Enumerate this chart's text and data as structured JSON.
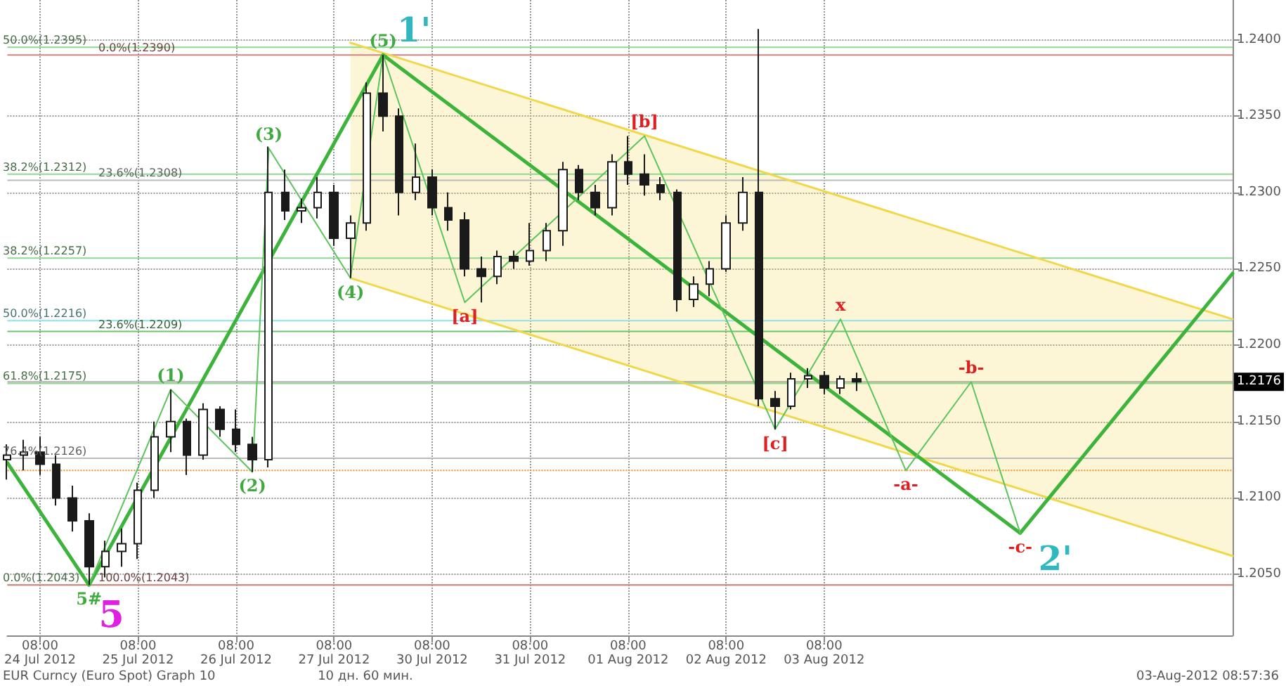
{
  "chart_data": {
    "type": "candlestick",
    "grid": true,
    "marker": "none",
    "categories": [
      null,
      null,
      "08:00\n24 Jul 2012",
      null,
      null,
      null,
      null,
      null,
      "08:00\n25 Jul 2012",
      null,
      null,
      null,
      null,
      null,
      "08:00\n26 Jul 2012",
      null,
      null,
      null,
      null,
      null,
      "08:00\n27 Jul 2012",
      null,
      null,
      null,
      null,
      null,
      "08:00\n30 Jul 2012",
      null,
      null,
      null,
      null,
      null,
      "08:00\n31 Jul 2012",
      null,
      null,
      null,
      null,
      null,
      "08:00\n01 Aug 2012",
      null,
      null,
      null,
      null,
      null,
      "08:00\n02 Aug 2012",
      null,
      null,
      null,
      null,
      null,
      "08:00\n03 Aug 2012",
      null,
      null,
      null,
      null,
      null,
      null,
      null,
      null,
      null,
      null,
      null,
      null,
      null,
      null,
      null,
      null,
      null,
      null,
      null,
      null,
      null,
      null,
      null,
      null,
      null
    ],
    "ylim": [
      1.201,
      1.2426
    ],
    "yticks": [
      {
        "value": 1.205,
        "label": "1.2050"
      },
      {
        "value": 1.21,
        "label": "1.2100"
      },
      {
        "value": 1.215,
        "label": "1.2150"
      },
      {
        "value": 1.22,
        "label": "1.2200"
      },
      {
        "value": 1.225,
        "label": "1.2250"
      },
      {
        "value": 1.23,
        "label": "1.2300"
      },
      {
        "value": 1.235,
        "label": "1.2350"
      },
      {
        "value": 1.24,
        "label": "1.2400"
      }
    ],
    "series": [
      {
        "color": "#1a1a1a",
        "ohlc": [
          [
            1.2125,
            1.2135,
            1.2112,
            1.2128
          ],
          [
            1.2128,
            1.2138,
            1.2118,
            1.213
          ],
          [
            1.213,
            1.214,
            1.2115,
            1.2122
          ],
          [
            1.2122,
            1.2128,
            1.2095,
            1.21
          ],
          [
            1.21,
            1.2108,
            1.2078,
            1.2085
          ],
          [
            1.2085,
            1.209,
            1.2043,
            1.2055
          ],
          [
            1.2055,
            1.2072,
            1.2048,
            1.2065
          ],
          [
            1.2065,
            1.208,
            1.2055,
            1.207
          ],
          [
            1.207,
            1.211,
            1.206,
            1.2105
          ],
          [
            1.2105,
            1.215,
            1.21,
            1.214
          ],
          [
            1.214,
            1.2171,
            1.213,
            1.215
          ],
          [
            1.215,
            1.2152,
            1.2115,
            1.2128
          ],
          [
            1.2128,
            1.2162,
            1.2125,
            1.2158
          ],
          [
            1.2158,
            1.216,
            1.214,
            1.2145
          ],
          [
            1.2145,
            1.2158,
            1.213,
            1.2135
          ],
          [
            1.2135,
            1.214,
            1.2117,
            1.2125
          ],
          [
            1.2125,
            1.233,
            1.212,
            1.23
          ],
          [
            1.23,
            1.2315,
            1.2282,
            1.2288
          ],
          [
            1.2288,
            1.2296,
            1.228,
            1.229
          ],
          [
            1.229,
            1.231,
            1.2283,
            1.23
          ],
          [
            1.23,
            1.2305,
            1.2265,
            1.227
          ],
          [
            1.227,
            1.2285,
            1.2244,
            1.228
          ],
          [
            1.228,
            1.2372,
            1.2275,
            1.2365
          ],
          [
            1.2365,
            1.239,
            1.234,
            1.235
          ],
          [
            1.235,
            1.2355,
            1.2285,
            1.23
          ],
          [
            1.23,
            1.2332,
            1.2295,
            1.231
          ],
          [
            1.231,
            1.2315,
            1.2285,
            1.229
          ],
          [
            1.229,
            1.23,
            1.2275,
            1.2282
          ],
          [
            1.2282,
            1.2287,
            1.2245,
            1.225
          ],
          [
            1.225,
            1.2258,
            1.2228,
            1.2245
          ],
          [
            1.2245,
            1.2262,
            1.224,
            1.2258
          ],
          [
            1.2258,
            1.2262,
            1.225,
            1.2255
          ],
          [
            1.2255,
            1.228,
            1.2252,
            1.2262
          ],
          [
            1.2262,
            1.228,
            1.2255,
            1.2275
          ],
          [
            1.2275,
            1.232,
            1.2265,
            1.2315
          ],
          [
            1.2315,
            1.2318,
            1.2295,
            1.23
          ],
          [
            1.23,
            1.2305,
            1.2285,
            1.229
          ],
          [
            1.229,
            1.2325,
            1.2285,
            1.232
          ],
          [
            1.232,
            1.2337,
            1.2305,
            1.2312
          ],
          [
            1.2312,
            1.2325,
            1.2298,
            1.2305
          ],
          [
            1.2305,
            1.231,
            1.2295,
            1.23
          ],
          [
            1.23,
            1.2302,
            1.2222,
            1.223
          ],
          [
            1.223,
            1.2245,
            1.2225,
            1.224
          ],
          [
            1.224,
            1.2255,
            1.2232,
            1.225
          ],
          [
            1.225,
            1.2285,
            1.2248,
            1.228
          ],
          [
            1.228,
            1.231,
            1.2275,
            1.23
          ],
          [
            1.23,
            1.2407,
            1.216,
            1.2165
          ],
          [
            1.2165,
            1.217,
            1.2145,
            1.216
          ],
          [
            1.216,
            1.2182,
            1.2158,
            1.2178
          ],
          [
            1.2178,
            1.2185,
            1.2172,
            1.218
          ],
          [
            1.218,
            1.2183,
            1.2168,
            1.2172
          ],
          [
            1.2172,
            1.218,
            1.2168,
            1.2178
          ],
          [
            1.2178,
            1.2182,
            1.217,
            1.2176
          ],
          null,
          null,
          null,
          null,
          null,
          null,
          null,
          null,
          null,
          null,
          null,
          null,
          null,
          null,
          null,
          null,
          null,
          null,
          null,
          null,
          null,
          null,
          null
        ]
      },
      {
        "type": "line",
        "color": "#f0d84a",
        "values": [
          null,
          null,
          null,
          null,
          null,
          null,
          null,
          null,
          null,
          null,
          null,
          null,
          null,
          null,
          null,
          null,
          null,
          null,
          null,
          null,
          null,
          1.2398,
          null,
          null,
          null,
          null,
          null,
          null,
          null,
          null,
          null,
          null,
          null,
          null,
          null,
          null,
          null,
          null,
          null,
          null,
          null,
          null,
          null,
          null,
          null,
          null,
          null,
          null,
          null,
          null,
          null,
          null,
          null,
          null,
          null,
          null,
          null,
          null,
          null,
          null,
          null,
          null,
          null,
          null,
          null,
          null,
          null,
          null,
          null,
          null,
          null,
          null,
          null,
          null,
          null,
          1.2217
        ],
        "lower": [
          null,
          null,
          null,
          null,
          null,
          null,
          null,
          null,
          null,
          null,
          null,
          null,
          null,
          null,
          null,
          null,
          null,
          null,
          null,
          null,
          null,
          1.2244,
          null,
          null,
          null,
          null,
          null,
          null,
          null,
          null,
          null,
          null,
          null,
          null,
          null,
          null,
          null,
          null,
          null,
          null,
          null,
          null,
          null,
          null,
          null,
          null,
          null,
          null,
          null,
          null,
          null,
          null,
          null,
          null,
          null,
          null,
          null,
          null,
          null,
          null,
          null,
          null,
          null,
          null,
          null,
          null,
          null,
          null,
          null,
          null,
          null,
          null,
          null,
          null,
          null,
          1.2062
        ],
        "upper": [
          null,
          null,
          null,
          null,
          null,
          null,
          null,
          null,
          null,
          null,
          null,
          null,
          null,
          null,
          null,
          null,
          null,
          null,
          null,
          null,
          null,
          1.2398,
          null,
          null,
          null,
          null,
          null,
          null,
          null,
          null,
          null,
          null,
          null,
          null,
          null,
          null,
          null,
          null,
          null,
          null,
          null,
          null,
          null,
          null,
          null,
          null,
          null,
          null,
          null,
          null,
          null,
          null,
          null,
          null,
          null,
          null,
          null,
          null,
          null,
          null,
          null,
          null,
          null,
          null,
          null,
          null,
          null,
          null,
          null,
          null,
          null,
          null,
          null,
          null,
          null,
          1.2217
        ]
      },
      {
        "type": "line",
        "color": "#3cb43c",
        "values": [
          1.2123,
          null,
          null,
          null,
          null,
          1.2043,
          null,
          null,
          null,
          null,
          null,
          null,
          null,
          null,
          null,
          null,
          null,
          null,
          null,
          null,
          null,
          null,
          null,
          1.239,
          null,
          null,
          null,
          null,
          null,
          null,
          null,
          null,
          null,
          null,
          null,
          null,
          null,
          null,
          null,
          null,
          null,
          null,
          null,
          null,
          null,
          null,
          null,
          null,
          null,
          null,
          null,
          null,
          null,
          null,
          null,
          null,
          null,
          null,
          null,
          null,
          null,
          null,
          1.2077,
          null,
          null,
          null,
          null,
          null,
          null,
          null,
          null,
          null,
          null,
          null,
          null,
          1.2247
        ]
      },
      {
        "type": "line",
        "color": "#5cc45c",
        "values": [
          null,
          null,
          null,
          null,
          null,
          1.2043,
          null,
          null,
          null,
          null,
          1.2171,
          null,
          null,
          null,
          null,
          1.2117,
          1.2329,
          null,
          null,
          null,
          null,
          1.2244,
          null,
          1.239,
          null,
          null,
          null,
          null,
          1.2228,
          null,
          null,
          null,
          null,
          null,
          null,
          null,
          null,
          null,
          null,
          1.2337,
          null,
          null,
          null,
          null,
          null,
          null,
          null,
          1.2145,
          null,
          null,
          null,
          1.2217,
          null,
          null,
          null,
          1.2118,
          null,
          null,
          null,
          1.2176,
          null,
          null,
          1.2077,
          null,
          null,
          null,
          null,
          null,
          null,
          null,
          null,
          null,
          null,
          null,
          null,
          null
        ]
      }
    ],
    "ref_lines": [
      {
        "axis": "y",
        "value": 1.2395,
        "label": "50.0%(1.2395)",
        "color": "#8fd88f"
      },
      {
        "axis": "y",
        "value": 1.239,
        "label": "0.0%(1.2390)",
        "color": "#d98080"
      },
      {
        "axis": "y",
        "value": 1.2312,
        "label": "38.2%(1.2312)",
        "color": "#8fd88f"
      },
      {
        "axis": "y",
        "value": 1.2308,
        "label": "23.6%(1.2308)",
        "color": "#bbbbbb"
      },
      {
        "axis": "y",
        "value": 1.2257,
        "label": "38.2%(1.2257)",
        "color": "#8fd88f"
      },
      {
        "axis": "y",
        "value": 1.2216,
        "label": "50.0%(1.2216)",
        "color": "#8ee3ea"
      },
      {
        "axis": "y",
        "value": 1.2209,
        "label": "23.6%(1.2209)",
        "color": "#6cc46c"
      },
      {
        "axis": "y",
        "value": 1.2175,
        "label": "61.8%(1.2175)",
        "color": "#8fd88f"
      },
      {
        "axis": "y",
        "value": 1.2126,
        "label": "76.4%(1.2126)",
        "color": "#bbbbbb"
      },
      {
        "axis": "y",
        "value": 1.2118,
        "color": "#e8902a",
        "line_style": "dotted"
      },
      {
        "axis": "y",
        "value": 1.2043,
        "label": "0.0%(1.2043)",
        "color": "#8fd88f"
      },
      {
        "axis": "y",
        "value": 1.2043,
        "label": "100.0%(1.2043)",
        "color": "#d98080"
      },
      {
        "axis": "y",
        "value": 1.2176,
        "label": "1.2176",
        "color": "#000000"
      }
    ],
    "annotations": [
      "EUR Curncy (Euro Spot) Graph 10",
      "10 дн. 60 мин.",
      "03-Aug-2012 08:57:36",
      {
        "text": "5#",
        "y": 1.2043
      },
      {
        "text": "(1)",
        "y": 1.2171
      },
      {
        "text": "(2)",
        "y": 1.2117
      },
      {
        "text": "(3)",
        "y": 1.2329
      },
      {
        "text": "(4)",
        "y": 1.2244
      },
      {
        "text": "(5)",
        "y": 1.239
      },
      {
        "text": "[a]",
        "y": 1.2228
      },
      {
        "text": "[b]",
        "y": 1.2337
      },
      {
        "text": "[c]",
        "y": 1.2145
      },
      {
        "text": "x",
        "y": 1.2217
      },
      {
        "text": "-a-",
        "y": 1.2118
      },
      {
        "text": "-b-",
        "y": 1.2176
      },
      {
        "text": "-c-",
        "y": 1.2077
      },
      "2'",
      {
        "text": "5",
        "y": 1.2043
      },
      {
        "text": "1'",
        "y": 1.239
      }
    ]
  }
}
